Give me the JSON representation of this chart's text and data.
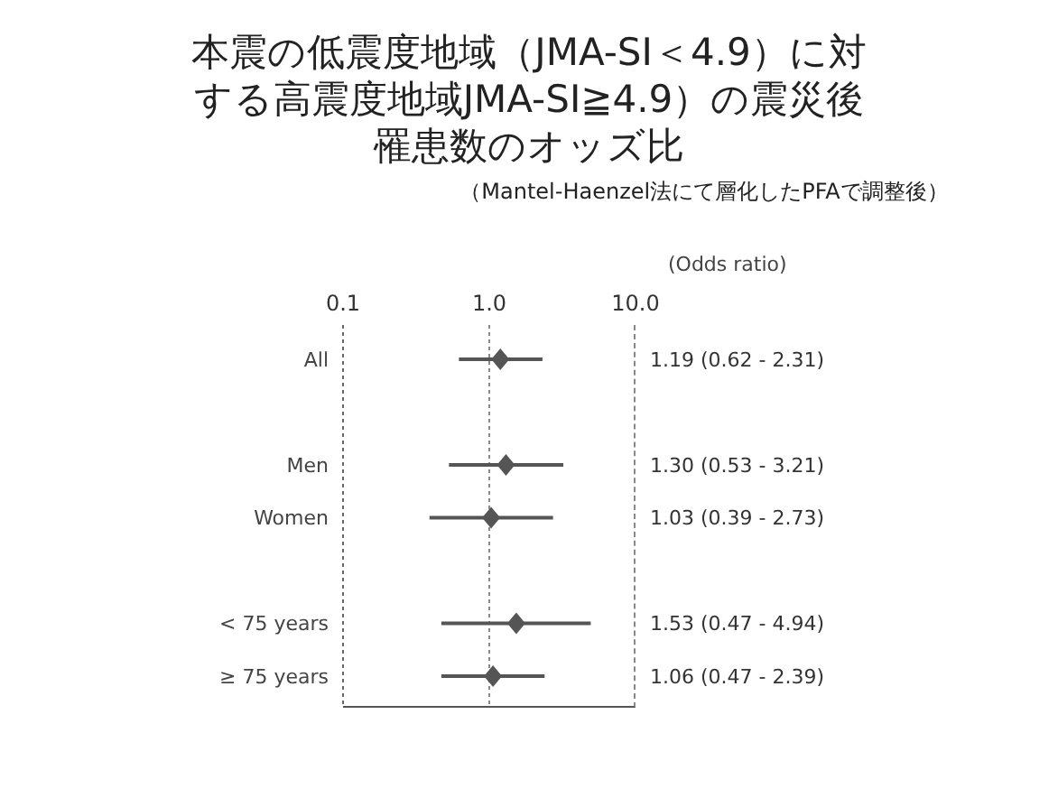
{
  "chart_data": {
    "type": "scatter",
    "orientation": "horizontal",
    "title": "本震の低震度地域（JMA-SI＜4.9）に対する高震度地域JMA-SI≧4.9）の震災後罹患数のオッズ比",
    "subtitle": "（Mantel-Haenzel法にて層化したPFAで調整後）",
    "xlabel": "(Odds ratio)",
    "categories": [
      "All",
      null,
      "Men",
      "Women",
      null,
      "< 75 years",
      "≥ 75 years"
    ],
    "values": [
      1.19,
      null,
      1.3,
      1.03,
      null,
      1.53,
      1.06
    ],
    "errors": [
      [
        0.62,
        2.31
      ],
      null,
      [
        0.53,
        3.21
      ],
      [
        0.39,
        2.73
      ],
      null,
      [
        0.47,
        4.94
      ],
      [
        0.47,
        2.39
      ]
    ],
    "value_labels": [
      "1.19 (0.62 - 2.31)",
      null,
      "1.30 (0.53 - 3.21)",
      "1.03 (0.39 - 2.73)",
      null,
      "1.53 (0.47 - 4.94)",
      "1.06 (0.47 - 2.39)"
    ],
    "color": "#555555",
    "marker": "diamond",
    "log": "x",
    "xlim": [
      0.1,
      10
    ],
    "xticks": [
      0.1,
      {
        "value": 1,
        "label": "1.0"
      },
      {
        "value": 10,
        "label": "10.0"
      }
    ],
    "ref_lines": [
      {
        "axis": "x",
        "value": 1,
        "line_style": "dotted",
        "color": "#888888"
      }
    ],
    "grid": false,
    "legend": false
  }
}
